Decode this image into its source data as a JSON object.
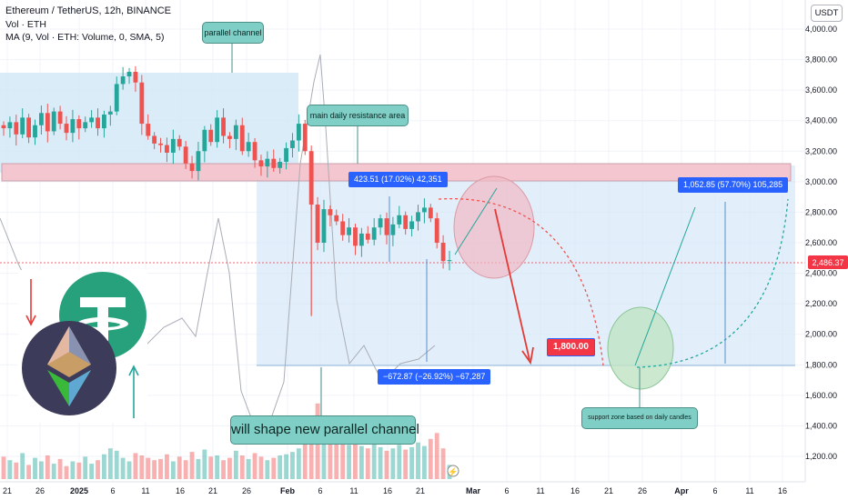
{
  "header": {
    "title": "Ethereum / TetherUS, 12h, BINANCE",
    "line2": "Vol · ETH",
    "line3": "MA (9, Vol · ETH: Volume, 0, SMA, 5)",
    "currency": "USDT"
  },
  "annotations": {
    "parallel_channel": "parallel channel",
    "resistance": "main daily resistance area",
    "new_channel": "will shape new parallel channel",
    "support": "support zone based on daily candles",
    "target_low": "1,800.00",
    "measure_up": "423.51 (17.02%) 42,351",
    "measure_down": "−672.87 (−26.92%) −67,287",
    "measure_target": "1,052.85 (57.70%) 105,285"
  },
  "colors": {
    "up": "#26a69a",
    "down": "#ef5350",
    "channel": "#cfe5f7",
    "resistance": "#f4c6d0",
    "callout": "#7fcfc6",
    "label_blue": "#2962ff",
    "label_red": "#f23645"
  },
  "chart_data": {
    "type": "candlestick",
    "symbol": "Ethereum / TetherUS",
    "timeframe": "12h",
    "exchange": "BINANCE",
    "ylim": [
      1050,
      4100
    ],
    "y_ticks": [
      "1,200.00",
      "1,400.00",
      "1,600.00",
      "1,800.00",
      "2,000.00",
      "2,200.00",
      "2,400.00",
      "2,600.00",
      "2,800.00",
      "3,000.00",
      "3,200.00",
      "3,400.00",
      "3,600.00",
      "3,800.00",
      "4,000.00"
    ],
    "x_ticks": [
      "21",
      "26",
      "2025",
      "6",
      "11",
      "16",
      "21",
      "26",
      "Feb",
      "6",
      "11",
      "16",
      "21",
      "Mar",
      "6",
      "11",
      "16",
      "21",
      "26",
      "Apr",
      "6",
      "11",
      "16"
    ],
    "last_price": "2,486.37",
    "close_path": [
      3350,
      3390,
      3310,
      3420,
      3290,
      3370,
      3450,
      3330,
      3460,
      3380,
      3320,
      3410,
      3350,
      3390,
      3420,
      3350,
      3440,
      3460,
      3640,
      3690,
      3720,
      3650,
      3380,
      3300,
      3250,
      3240,
      3190,
      3280,
      3230,
      3120,
      3070,
      3200,
      3340,
      3260,
      3420,
      3300,
      3280,
      3370,
      3200,
      3260,
      3140,
      3100,
      3150,
      3090,
      3130,
      3220,
      3270,
      3380,
      3200,
      2850,
      2600,
      2820,
      2780,
      2740,
      2650,
      2700,
      2580,
      2660,
      2620,
      2700,
      2760,
      2650,
      2720,
      2780,
      2690,
      2740,
      2800,
      2830,
      2760,
      2600,
      2480,
      2486
    ],
    "volume_path": [
      190,
      160,
      140,
      220,
      120,
      180,
      150,
      200,
      130,
      170,
      110,
      150,
      140,
      190,
      130,
      160,
      210,
      260,
      240,
      180,
      150,
      220,
      200,
      180,
      160,
      170,
      210,
      150,
      190,
      160,
      230,
      170,
      250,
      190,
      200,
      160,
      180,
      240,
      200,
      170,
      220,
      190,
      160,
      180,
      200,
      210,
      230,
      260,
      300,
      520,
      640,
      420,
      380,
      330,
      300,
      290,
      320,
      280,
      260,
      300,
      270,
      240,
      260,
      290,
      250,
      270,
      310,
      280,
      340,
      390,
      260,
      120
    ],
    "levels": {
      "resistance_top": 3130,
      "resistance_bottom": 3000,
      "target_low": 1800,
      "current": 2486.37
    }
  }
}
